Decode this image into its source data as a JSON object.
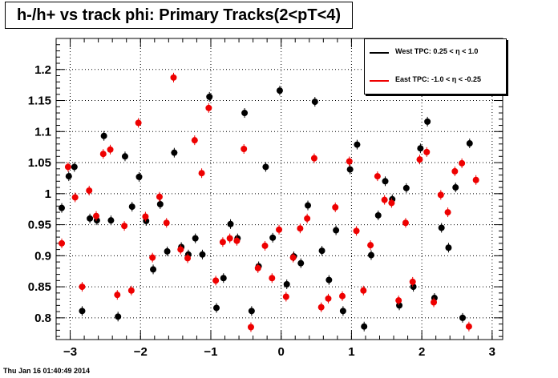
{
  "chart_data": {
    "type": "scatter",
    "title": "h-/h+ vs track phi: Primary Tracks(2<pT<4)",
    "xlabel": "",
    "ylabel": "",
    "xlim": [
      -3.2,
      3.15
    ],
    "ylim": [
      0.765,
      1.25
    ],
    "x_ticks": [
      -3,
      -2,
      -1,
      0,
      1,
      2,
      3
    ],
    "y_ticks": [
      0.8,
      0.85,
      0.9,
      0.95,
      1,
      1.05,
      1.1,
      1.15,
      1.2
    ],
    "y_tick_labels": [
      "0.8",
      "0.85",
      "0.9",
      "0.95",
      "1",
      "1.05",
      "1.1",
      "1.15",
      "1.2"
    ],
    "grid": true,
    "legend_position": "top-right",
    "series": [
      {
        "name": "West TPC: 0.25 <    η < 1.0",
        "color": "#000000",
        "points": [
          [
            -3.12,
            0.977
          ],
          [
            -3.02,
            1.028
          ],
          [
            -2.94,
            1.043
          ],
          [
            -2.83,
            0.811
          ],
          [
            -2.72,
            0.96
          ],
          [
            -2.62,
            0.957
          ],
          [
            -2.52,
            1.093
          ],
          [
            -2.42,
            0.957
          ],
          [
            -2.32,
            0.802
          ],
          [
            -2.22,
            1.06
          ],
          [
            -2.12,
            0.979
          ],
          [
            -2.02,
            1.027
          ],
          [
            -1.92,
            0.956
          ],
          [
            -1.82,
            0.878
          ],
          [
            -1.72,
            0.983
          ],
          [
            -1.62,
            0.907
          ],
          [
            -1.52,
            1.066
          ],
          [
            -1.42,
            0.914
          ],
          [
            -1.32,
            0.902
          ],
          [
            -1.22,
            0.928
          ],
          [
            -1.12,
            0.902
          ],
          [
            -1.02,
            1.156
          ],
          [
            -0.92,
            0.816
          ],
          [
            -0.82,
            0.864
          ],
          [
            -0.72,
            0.951
          ],
          [
            -0.62,
            0.928
          ],
          [
            -0.52,
            1.13
          ],
          [
            -0.42,
            0.811
          ],
          [
            -0.32,
            0.883
          ],
          [
            -0.22,
            1.043
          ],
          [
            -0.12,
            0.929
          ],
          [
            -0.02,
            1.166
          ],
          [
            0.08,
            0.854
          ],
          [
            0.18,
            0.899
          ],
          [
            0.28,
            0.888
          ],
          [
            0.38,
            0.981
          ],
          [
            0.48,
            1.148
          ],
          [
            0.58,
            0.908
          ],
          [
            0.68,
            0.861
          ],
          [
            0.78,
            0.941
          ],
          [
            0.88,
            0.811
          ],
          [
            0.98,
            1.039
          ],
          [
            1.08,
            1.079
          ],
          [
            1.18,
            0.786
          ],
          [
            1.28,
            0.901
          ],
          [
            1.38,
            0.965
          ],
          [
            1.48,
            1.02
          ],
          [
            1.58,
            0.991
          ],
          [
            1.68,
            0.82
          ],
          [
            1.78,
            1.009
          ],
          [
            1.88,
            0.85
          ],
          [
            1.98,
            1.073
          ],
          [
            2.08,
            1.116
          ],
          [
            2.18,
            0.832
          ],
          [
            2.28,
            0.945
          ],
          [
            2.38,
            0.913
          ],
          [
            2.48,
            1.01
          ],
          [
            2.58,
            0.8
          ],
          [
            2.68,
            1.081
          ]
        ]
      },
      {
        "name": "East TPC: -1.0 <    η  < -0.25",
        "color": "#ee0000",
        "points": [
          [
            -3.12,
            0.92
          ],
          [
            -3.03,
            1.043
          ],
          [
            -2.93,
            0.994
          ],
          [
            -2.83,
            0.85
          ],
          [
            -2.73,
            1.005
          ],
          [
            -2.63,
            0.964
          ],
          [
            -2.53,
            1.064
          ],
          [
            -2.43,
            1.071
          ],
          [
            -2.33,
            0.837
          ],
          [
            -2.23,
            0.948
          ],
          [
            -2.13,
            0.844
          ],
          [
            -2.03,
            1.114
          ],
          [
            -1.93,
            0.963
          ],
          [
            -1.83,
            0.897
          ],
          [
            -1.73,
            0.995
          ],
          [
            -1.63,
            0.953
          ],
          [
            -1.53,
            1.187
          ],
          [
            -1.43,
            0.91
          ],
          [
            -1.33,
            0.896
          ],
          [
            -1.23,
            1.086
          ],
          [
            -1.13,
            1.033
          ],
          [
            -1.03,
            1.138
          ],
          [
            -0.93,
            0.86
          ],
          [
            -0.83,
            0.922
          ],
          [
            -0.73,
            0.928
          ],
          [
            -0.63,
            0.924
          ],
          [
            -0.53,
            1.072
          ],
          [
            -0.43,
            0.785
          ],
          [
            -0.33,
            0.88
          ],
          [
            -0.23,
            0.916
          ],
          [
            -0.13,
            0.864
          ],
          [
            -0.03,
            0.942
          ],
          [
            0.07,
            0.834
          ],
          [
            0.17,
            0.897
          ],
          [
            0.27,
            0.944
          ],
          [
            0.37,
            0.96
          ],
          [
            0.47,
            1.057
          ],
          [
            0.57,
            0.817
          ],
          [
            0.67,
            0.831
          ],
          [
            0.77,
            0.978
          ],
          [
            0.87,
            0.835
          ],
          [
            0.97,
            1.052
          ],
          [
            1.07,
            0.94
          ],
          [
            1.17,
            0.844
          ],
          [
            1.27,
            0.917
          ],
          [
            1.37,
            1.028
          ],
          [
            1.47,
            0.99
          ],
          [
            1.57,
            0.985
          ],
          [
            1.67,
            0.828
          ],
          [
            1.77,
            0.953
          ],
          [
            1.87,
            0.858
          ],
          [
            1.97,
            1.055
          ],
          [
            2.07,
            1.067
          ],
          [
            2.17,
            0.825
          ],
          [
            2.27,
            0.998
          ],
          [
            2.37,
            0.97
          ],
          [
            2.47,
            1.036
          ],
          [
            2.57,
            1.049
          ],
          [
            2.67,
            0.786
          ],
          [
            2.77,
            1.022
          ]
        ]
      }
    ]
  },
  "legend": {
    "items": [
      {
        "label": "West TPC: 0.25 <    η < 1.0",
        "color": "#000000"
      },
      {
        "label": "East TPC: -1.0 <    η  < -0.25",
        "color": "#ee0000"
      }
    ]
  },
  "timestamp": "Thu Jan 16 01:40:49 2014"
}
